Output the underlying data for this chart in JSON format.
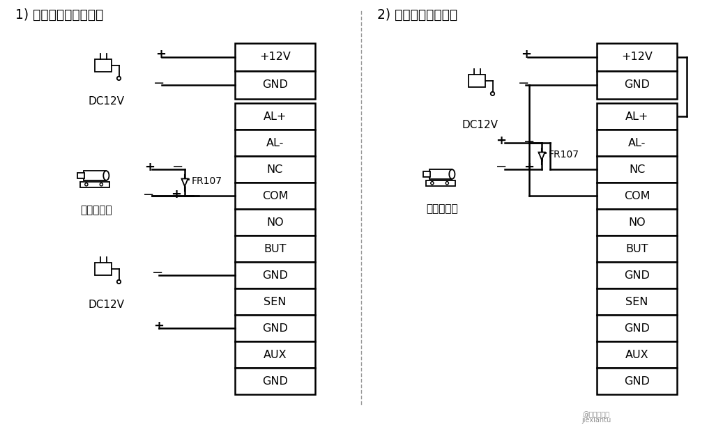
{
  "title1": "1) 设备与锁不共用电源",
  "title2": "2) 设备与锁共用电源",
  "terminal_labels_main": [
    "AL+",
    "AL-",
    "NC",
    "COM",
    "NO",
    "BUT",
    "GND",
    "SEN",
    "GND",
    "AUX",
    "GND"
  ],
  "dc12v_label": "DC12V",
  "lock_label": "通电常闭锁",
  "fr107_label": "FR107",
  "bg_color": "#ffffff",
  "line_color": "#000000",
  "watermark_line1": "@羽电智能网",
  "watermark_line2": "jiexiantu"
}
